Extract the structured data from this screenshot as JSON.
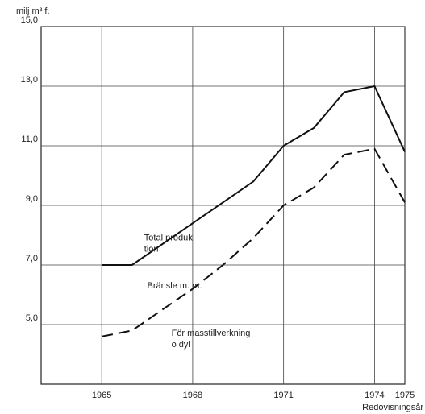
{
  "chart_data": {
    "type": "line",
    "ylabel": "milj m³ f.",
    "xlabel": "Redovisningsår",
    "x": [
      1965,
      1966,
      1968,
      1969,
      1970,
      1971,
      1972,
      1973,
      1974,
      1975
    ],
    "series": [
      {
        "color": "#111111",
        "style": "solid",
        "values": [
          7.0,
          7.0,
          8.4,
          9.1,
          9.8,
          11.0,
          11.6,
          12.8,
          13.0,
          10.8
        ]
      },
      {
        "color": "#111111",
        "style": "dashed",
        "values": [
          4.6,
          4.8,
          6.2,
          7.0,
          7.9,
          9.0,
          9.6,
          10.7,
          10.9,
          9.1
        ]
      }
    ],
    "annotations": [
      {
        "lines": [
          "Total produk-",
          "tion"
        ],
        "x": 1966.4,
        "y": 7.9
      },
      {
        "lines": [
          "Bränsle m. m."
        ],
        "x": 1966.5,
        "y": 6.3
      },
      {
        "lines": [
          "För masstillverkning",
          "o dyl"
        ],
        "x": 1967.3,
        "y": 4.7
      }
    ],
    "xlim": [
      1963,
      1975
    ],
    "ylim": [
      3,
      15
    ],
    "xticks": [
      1965,
      1968,
      1971,
      1974,
      1975
    ],
    "yticks": [
      {
        "value": 5,
        "label": "5,0"
      },
      {
        "value": 7,
        "label": "7,0"
      },
      {
        "value": 9,
        "label": "9,0"
      },
      {
        "value": 11,
        "label": "11,0"
      },
      {
        "value": 13,
        "label": "13,0"
      },
      {
        "value": 15,
        "label": "15,0"
      }
    ],
    "grid": true
  }
}
